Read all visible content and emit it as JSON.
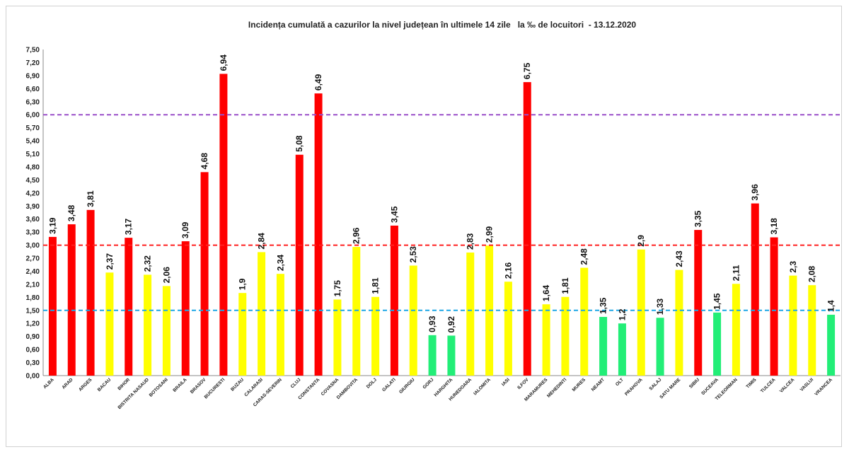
{
  "chart_data": {
    "type": "bar",
    "title": "Incidența cumulată a cazurilor la nivel județean în ultimele 14 zile   la ‰ de locuitori  - 13.12.2020",
    "xlabel": "",
    "ylabel": "",
    "ylim": [
      0,
      7.5
    ],
    "y_ticks": [
      "0,00",
      "0,30",
      "0,60",
      "0,90",
      "1,20",
      "1,50",
      "1,80",
      "2,10",
      "2,40",
      "2,70",
      "3,00",
      "3,30",
      "3,60",
      "3,90",
      "4,20",
      "4,50",
      "4,80",
      "5,10",
      "5,40",
      "5,70",
      "6,00",
      "6,30",
      "6,60",
      "6,90",
      "7,20",
      "7,50"
    ],
    "legend": "none",
    "grid": false,
    "colors": {
      "red": "#ff0000",
      "yellow": "#ffff00",
      "green": "#22ee77"
    },
    "thresholds": [
      {
        "value": 6.0,
        "color": "#9a4fc9"
      },
      {
        "value": 3.0,
        "color": "#ff2020"
      },
      {
        "value": 1.5,
        "color": "#1ea7e6"
      }
    ],
    "categories": [
      "ALBA",
      "ARAD",
      "ARGES",
      "BACAU",
      "BIHOR",
      "BISTRITA NASAUD",
      "BOTOSANI",
      "BRAILA",
      "BRASOV",
      "BUCURESTI",
      "BUZAU",
      "CALARASI",
      "CARAS-SEVERIN",
      "CLUJ",
      "CONSTANTA",
      "COVASNA",
      "DAMBOVITA",
      "DOLJ",
      "GALATI",
      "GIURGIU",
      "GORJ",
      "HARGHITA",
      "HUNEDOARA",
      "IALOMITA",
      "IASI",
      "ILFOV",
      "MARAMURES",
      "MEHEDINTI",
      "MURES",
      "NEAMT",
      "OLT",
      "PRAHOVA",
      "SALAJ",
      "SATU MARE",
      "SIBIU",
      "SUCEAVA",
      "TELEORMAN",
      "TIMIS",
      "TULCEA",
      "VALCEA",
      "VASLUI",
      "VRANCEA"
    ],
    "values": [
      3.19,
      3.48,
      3.81,
      2.37,
      3.17,
      2.32,
      2.06,
      3.09,
      4.68,
      6.94,
      1.9,
      2.84,
      2.34,
      5.08,
      6.49,
      1.75,
      2.96,
      1.81,
      3.45,
      2.53,
      0.93,
      0.92,
      2.83,
      2.99,
      2.16,
      6.75,
      1.64,
      1.81,
      2.48,
      1.35,
      1.2,
      2.9,
      1.33,
      2.43,
      3.35,
      1.45,
      2.11,
      3.96,
      3.18,
      2.3,
      2.08,
      1.4
    ],
    "labels": [
      "3,19",
      "3,48",
      "3,81",
      "2,37",
      "3,17",
      "2,32",
      "2,06",
      "3,09",
      "4,68",
      "6,94",
      "1,9",
      "2,84",
      "2,34",
      "5,08",
      "6,49",
      "1,75",
      "2,96",
      "1,81",
      "3,45",
      "2,53",
      "0,93",
      "0,92",
      "2,83",
      "2,99",
      "2,16",
      "6,75",
      "1,64",
      "1,81",
      "2,48",
      "1,35",
      "1,2",
      "2,9",
      "1,33",
      "2,43",
      "3,35",
      "1,45",
      "2,11",
      "3,96",
      "3,18",
      "2,3",
      "2,08",
      "1,4"
    ],
    "bar_colors": [
      "red",
      "red",
      "red",
      "yellow",
      "red",
      "yellow",
      "yellow",
      "red",
      "red",
      "red",
      "yellow",
      "yellow",
      "yellow",
      "red",
      "red",
      "yellow",
      "yellow",
      "yellow",
      "red",
      "yellow",
      "green",
      "green",
      "yellow",
      "yellow",
      "yellow",
      "red",
      "yellow",
      "yellow",
      "yellow",
      "green",
      "green",
      "yellow",
      "green",
      "yellow",
      "red",
      "green",
      "yellow",
      "red",
      "red",
      "yellow",
      "yellow",
      "green"
    ]
  }
}
